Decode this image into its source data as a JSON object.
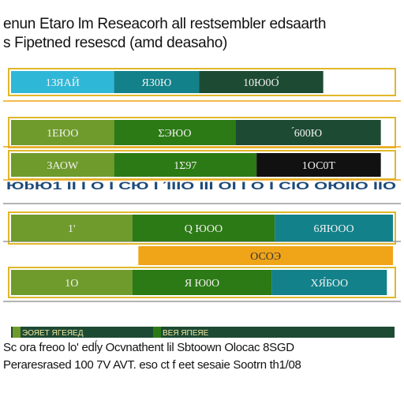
{
  "title": "enun Etaro lm Reseacorh all restsembler edsaarth",
  "subtitle": "s Fipetned resescd (amd deasaho)",
  "footer": {
    "line1": "Sc ora freoo lo' edĺy Ocvnathent lil Sbtoown Olocac 8SGD",
    "line2": "Peraresrased 100 7V AVT. eso ct f eet sesaie Sootrn th1/08"
  },
  "colors": {
    "cyan": "#2fb7d8",
    "teal": "#12818a",
    "dark_green": "#1d4a33",
    "olive": "#6f9b2c",
    "green": "#2c7a15",
    "orange": "#f0a418",
    "gold": "#e0b82a",
    "gray": "#9a9a9a"
  },
  "chart_data": {
    "type": "bar",
    "orientation": "horizontal",
    "stacked": true,
    "title": "enun Etaro lm Reseacorh all restsembler edsaarth",
    "subtitle": "s Fipetned resescd (amd deasaho)",
    "rows": [
      {
        "segments": [
          {
            "label": "1ЗЯАЙ",
            "value": 34,
            "color": "#2fb7d8"
          },
          {
            "label": "ЯЗ0Ю",
            "value": 28,
            "color": "#12818a"
          },
          {
            "label": "10Ю0О́",
            "value": 41,
            "color": "#1d4a33"
          }
        ]
      },
      {
        "segments": [
          {
            "label": "1ЕЮО",
            "value": 34,
            "color": "#6f9b2c"
          },
          {
            "label": "ΣЭЮО",
            "value": 40,
            "color": "#2c7a15"
          },
          {
            "label": "́600Ю",
            "value": 48,
            "color": "#1d4a33"
          }
        ]
      },
      {
        "segments": [
          {
            "label": "ЗАОW",
            "value": 34,
            "color": "#6f9b2c"
          },
          {
            "label": "1Σ97",
            "value": 47,
            "color": "#2c7a15"
          },
          {
            "label": "1ОС0Т",
            "value": 41,
            "color": "#111111"
          }
        ]
      },
      {
        "segments": [
          {
            "label": "1'",
            "value": 40,
            "color": "#6f9b2c"
          },
          {
            "label": "Q ЮОО",
            "value": 47,
            "color": "#2c7a15"
          },
          {
            "label": "6ЯЮОО",
            "value": 39,
            "color": "#12818a"
          }
        ]
      },
      {
        "segments": [
          {
            "label": "",
            "value": 42,
            "color": "#ffffff"
          },
          {
            "label": "ОСОЭ",
            "value": 84,
            "color": "#f0a418"
          }
        ]
      },
      {
        "segments": [
          {
            "label": "1О",
            "value": 40,
            "color": "#6f9b2c"
          },
          {
            "label": "Я Ю0О",
            "value": 46,
            "color": "#2c7a15"
          },
          {
            "label": "ХЯ́БОО",
            "value": 38,
            "color": "#12818a"
          }
        ]
      }
    ],
    "tick_strip": "ЮbЮ1 ΙΙ Ι Ο Ι ϹЮ Ι ΊΙΙΟ ΙΙΙ ΟΙ Ι Ο Ι ϹΙΟ ΟЮΙΙΟ ΙΙΟ",
    "legend": {
      "entries": [
        {
          "label": "ЭОЯЕТ ЯГЕЯЕД",
          "color": "#6f9b2c"
        },
        {
          "label": "ВЕЯ ЯПЕЯЕ",
          "color": "#2c7a15"
        }
      ]
    },
    "grid": false,
    "xlabel": "",
    "ylabel": ""
  }
}
